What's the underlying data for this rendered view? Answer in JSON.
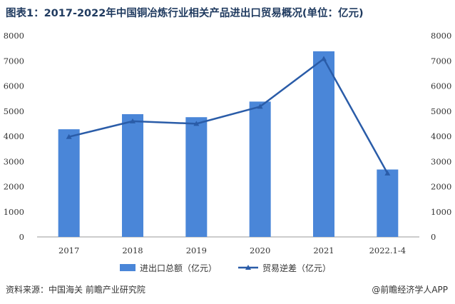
{
  "title": "图表1：2017-2022年中国铜冶炼行业相关产品进出口贸易概况(单位：亿元)",
  "source": "资料来源：中国海关 前瞻产业研究院",
  "credit": "@前瞻经济学人APP",
  "colors": {
    "bar": "#4a86d8",
    "line": "#2a5ca8",
    "axis": "#999999",
    "title": "#1f3a5f"
  },
  "chart_data": {
    "type": "bar",
    "categories": [
      "2017",
      "2018",
      "2019",
      "2020",
      "2021",
      "2022.1-4"
    ],
    "series": [
      {
        "name": "进出口总额（亿元）",
        "type": "bar",
        "axis": "left",
        "values": [
          4280,
          4880,
          4760,
          5380,
          7380,
          2680
        ]
      },
      {
        "name": "贸易逆差（亿元）",
        "type": "line",
        "axis": "right",
        "marker": "triangle",
        "values": [
          3980,
          4600,
          4500,
          5180,
          7080,
          2530
        ]
      }
    ],
    "ylim": [
      0,
      8000
    ],
    "y2lim": [
      0,
      8000
    ],
    "yticks": [
      "0",
      "1000",
      "2000",
      "3000",
      "4000",
      "5000",
      "6000",
      "7000",
      "8000"
    ],
    "y2ticks": [
      "0",
      "1000",
      "2000",
      "3000",
      "4000",
      "5000",
      "6000",
      "7000",
      "8000"
    ],
    "grid": false,
    "legend_position": "bottom"
  }
}
